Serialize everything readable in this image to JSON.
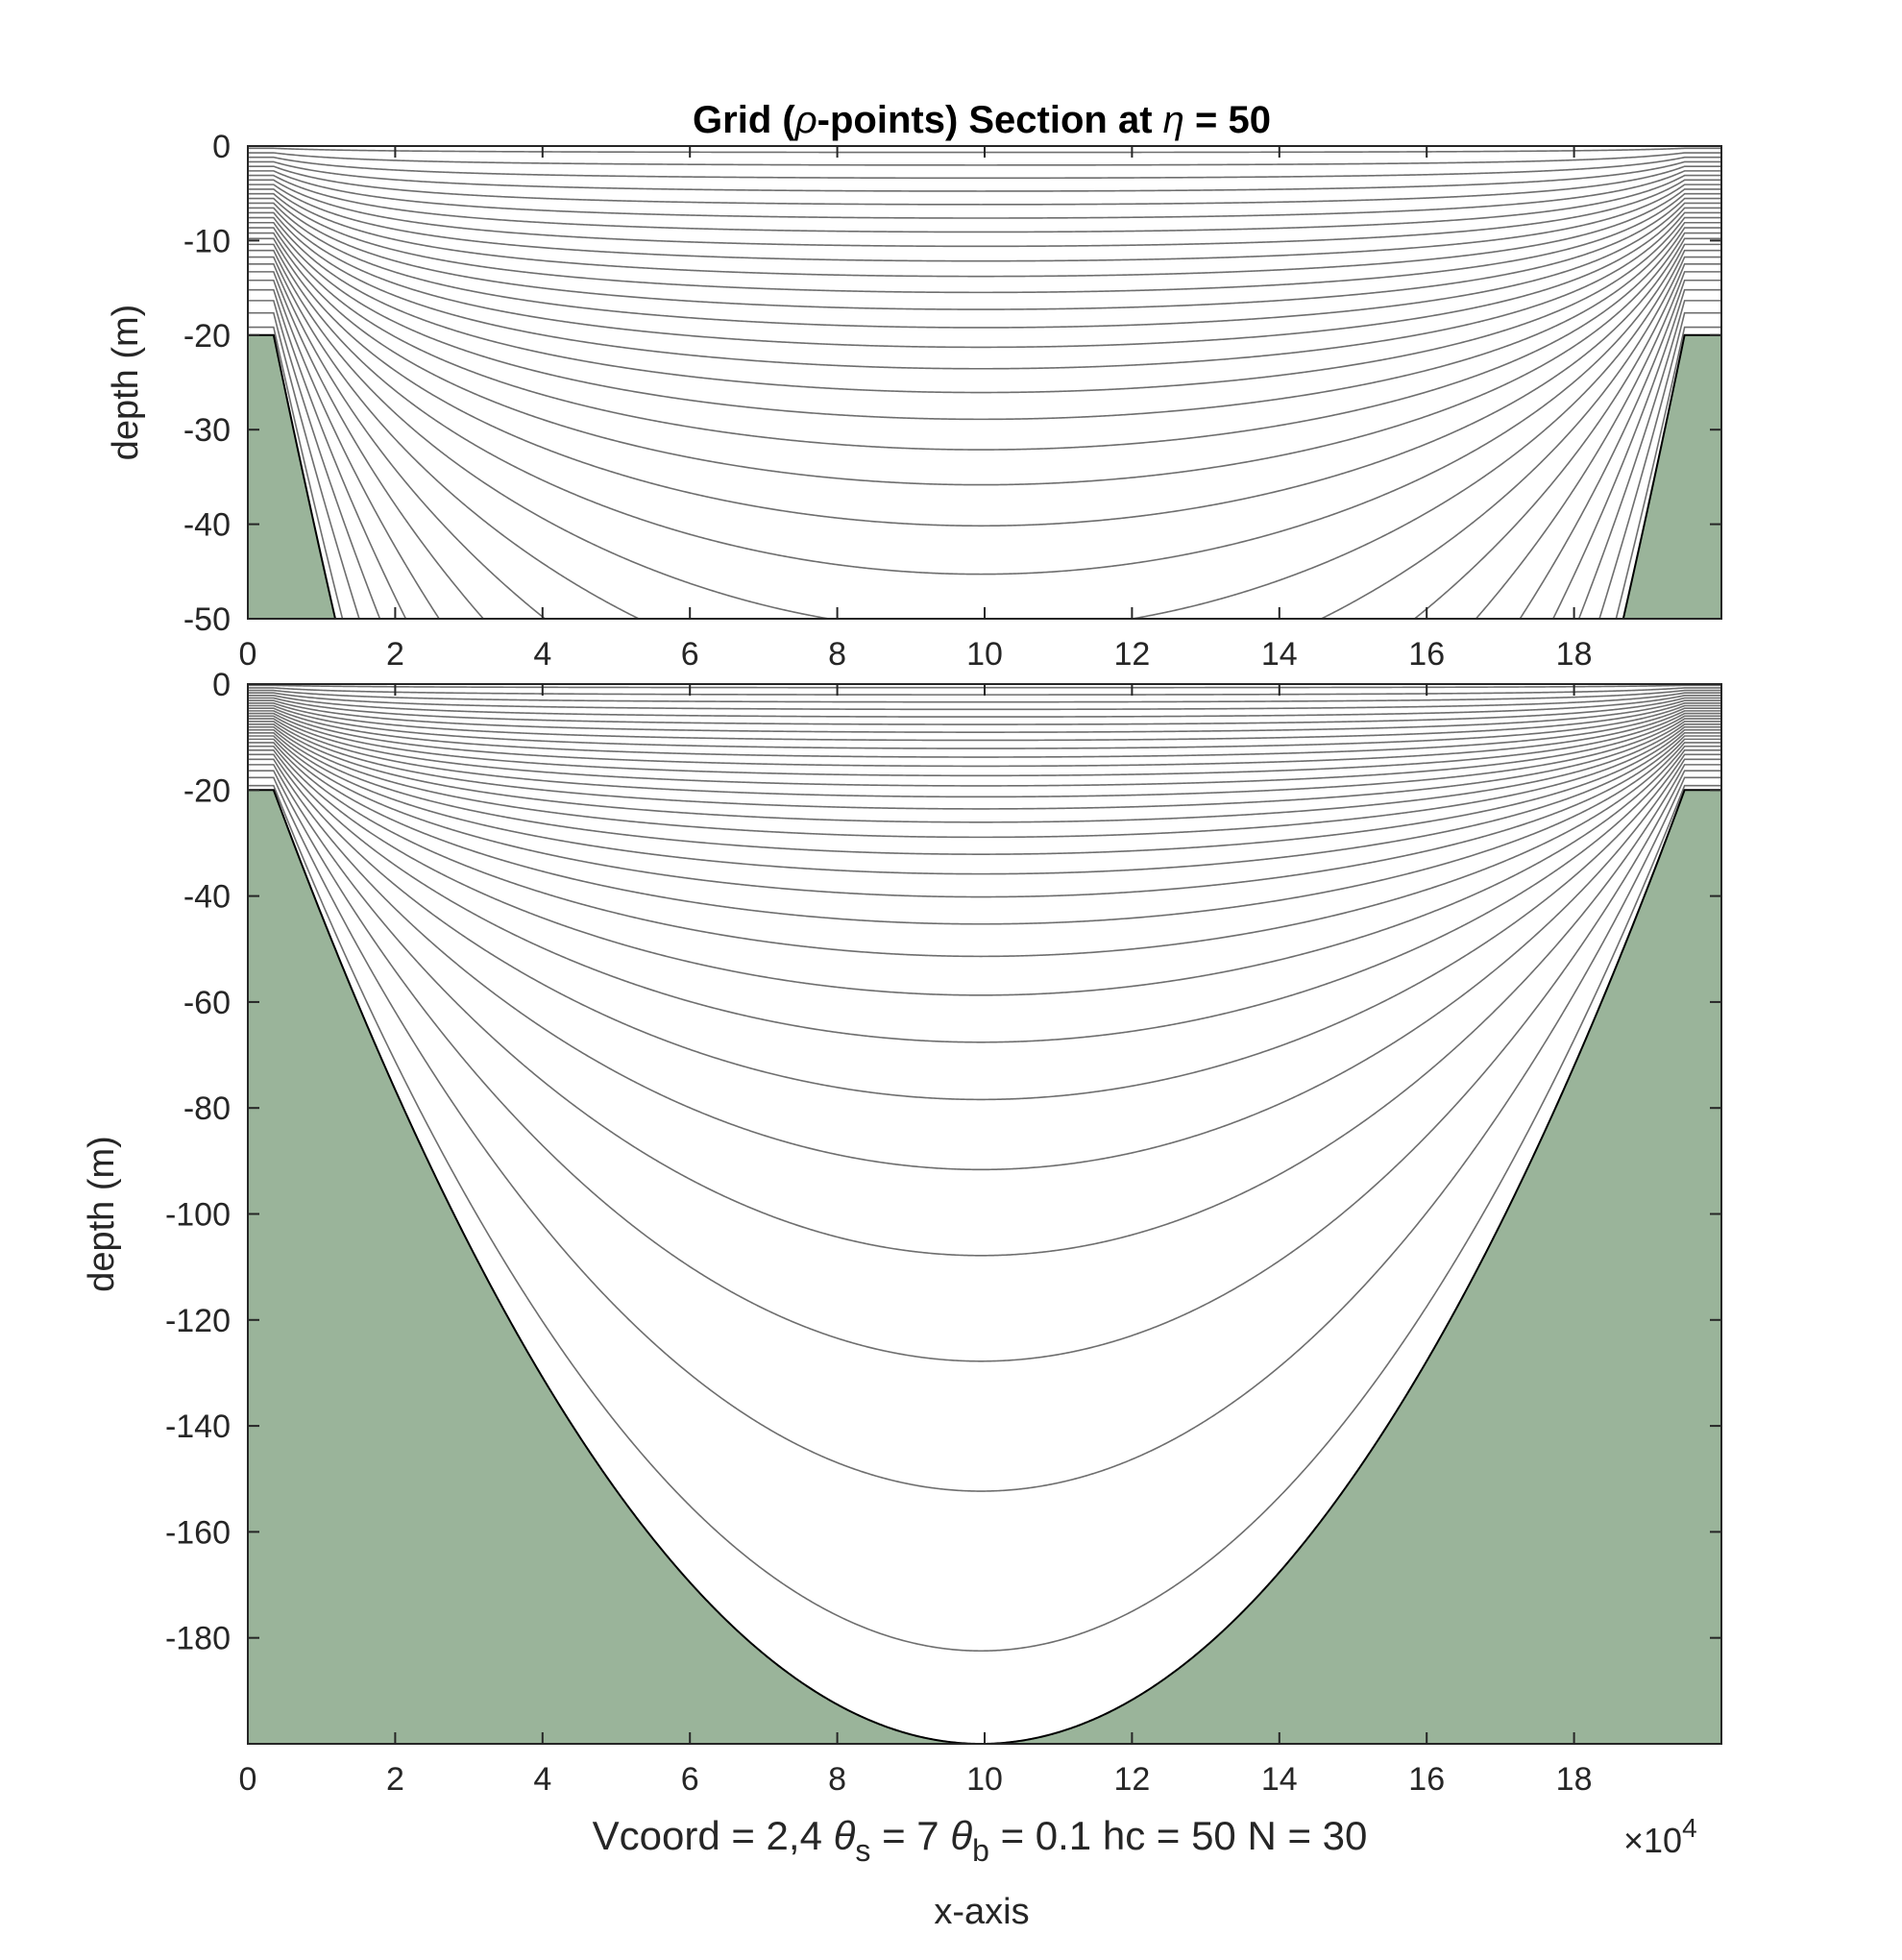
{
  "colors": {
    "land": "#9ab49a",
    "sigma_line": "#6e6e6e",
    "bottom_line": "#000000",
    "axis": "#262626"
  },
  "figure": {
    "title_prefix": "Grid (",
    "title_rho": "ρ",
    "title_mid": "-points) Section at  ",
    "title_eta": "η",
    "title_suffix": " = 50",
    "xlabel": "x-axis",
    "x_multiplier": "×10",
    "x_multiplier_exp": "4",
    "params": {
      "vcoord": "Vcoord = 2,4",
      "theta_s_sym": "θ",
      "theta_s_sub": "s",
      "theta_s_val": " = 7",
      "theta_b_sym": "θ",
      "theta_b_sub": "b",
      "theta_b_val": " = 0.1",
      "hc": "hc  = 50",
      "N": "N = 30"
    }
  },
  "chart_data": [
    {
      "type": "line",
      "title": "Grid (ρ-points) Section at η = 50",
      "xlabel": "",
      "ylabel": "depth  (m)",
      "xlim": [
        0,
        20
      ],
      "ylim": [
        -50,
        0
      ],
      "xticks": [
        0,
        2,
        4,
        6,
        8,
        10,
        12,
        14,
        16,
        18
      ],
      "yticks": [
        0,
        -10,
        -20,
        -30,
        -40,
        -50
      ],
      "bathymetry": {
        "shelf_depth": 20,
        "max_depth": 200,
        "shelf_left_end": 0.35,
        "shelf_right_start": 19.5,
        "channel_center": 9.95
      },
      "vertical_levels": 30,
      "theta_s": 7,
      "theta_b": 0.1,
      "hc": 50,
      "land_fill": true
    },
    {
      "type": "line",
      "title": "",
      "xlabel": "x-axis",
      "ylabel": "depth  (m)",
      "xlim": [
        0,
        20
      ],
      "ylim": [
        -200,
        0
      ],
      "xticks": [
        0,
        2,
        4,
        6,
        8,
        10,
        12,
        14,
        16,
        18
      ],
      "yticks": [
        0,
        -20,
        -40,
        -60,
        -80,
        -100,
        -120,
        -140,
        -160,
        -180
      ],
      "x_multiplier": "×10^4",
      "bathymetry": {
        "shelf_depth": 20,
        "max_depth": 200,
        "shelf_left_end": 0.35,
        "shelf_right_start": 19.5,
        "channel_center": 9.95
      },
      "vertical_levels": 30,
      "theta_s": 7,
      "theta_b": 0.1,
      "hc": 50,
      "land_fill": true
    }
  ]
}
